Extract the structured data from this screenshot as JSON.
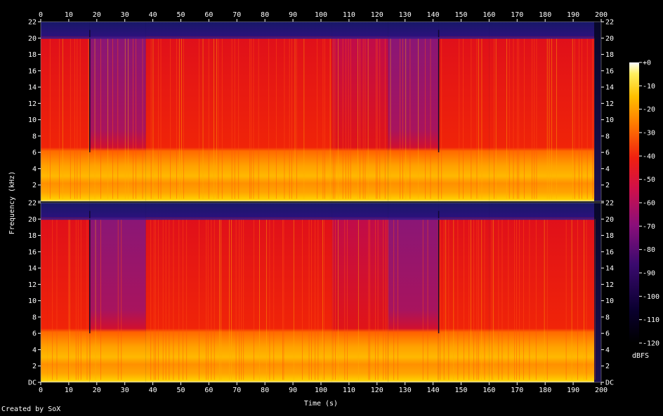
{
  "credit": "Created by SoX",
  "chart_data": {
    "type": "heatmap",
    "subtype": "spectrogram",
    "channels": 2,
    "xlabel": "Time (s)",
    "ylabel": "Frequency (kHz)",
    "xlim": [
      0,
      200
    ],
    "x_ticks": [
      0,
      10,
      20,
      30,
      40,
      50,
      60,
      70,
      80,
      90,
      100,
      110,
      120,
      130,
      140,
      150,
      160,
      170,
      180,
      190,
      200
    ],
    "ylim_khz": [
      0,
      22
    ],
    "y_ticks": [
      "DC",
      "2",
      "4",
      "6",
      "8",
      "10",
      "12",
      "14",
      "16",
      "18",
      "20",
      "22"
    ],
    "y_tick_values": [
      0,
      2,
      4,
      6,
      8,
      10,
      12,
      14,
      16,
      18,
      20,
      22
    ],
    "colorbar": {
      "label": "dBFS",
      "range": [
        -120,
        0
      ],
      "ticks": [
        "+0",
        "-10",
        "-20",
        "-30",
        "-40",
        "-50",
        "-60",
        "-70",
        "-80",
        "-90",
        "-100",
        "-110",
        "-120"
      ],
      "tick_values": [
        0,
        -10,
        -20,
        -30,
        -40,
        -50,
        -60,
        -70,
        -80,
        -90,
        -100,
        -110,
        -120
      ]
    },
    "audio_duration_s": 197.5,
    "lowpass_cutoff_khz": 20,
    "segments": [
      {
        "start": 0,
        "end": 2.5,
        "hf_level": "high"
      },
      {
        "start": 2.5,
        "end": 17.5,
        "hf_level": "high"
      },
      {
        "start": 17.5,
        "end": 37.5,
        "hf_level": "low"
      },
      {
        "start": 37.5,
        "end": 104,
        "hf_level": "high"
      },
      {
        "start": 104,
        "end": 124,
        "hf_level": "medium"
      },
      {
        "start": 124,
        "end": 142,
        "hf_level": "low"
      },
      {
        "start": 142,
        "end": 160,
        "hf_level": "high"
      },
      {
        "start": 160,
        "end": 197.5,
        "hf_level": "high"
      }
    ],
    "grid": false,
    "legend": "colorbar-right"
  }
}
